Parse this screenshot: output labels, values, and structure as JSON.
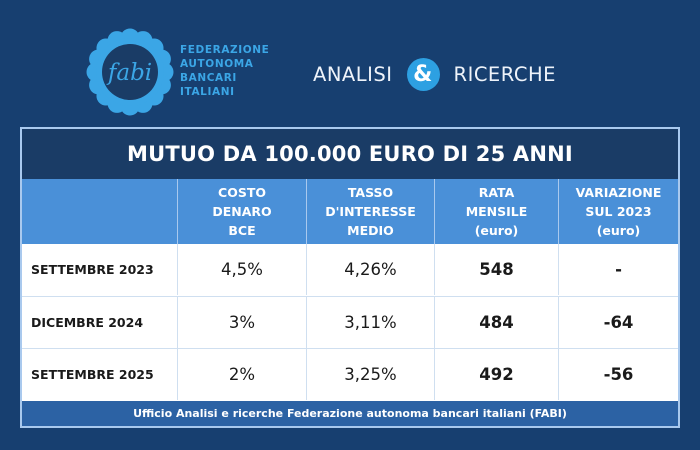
{
  "header": {
    "logo_text": "fabi",
    "org_lines": [
      "FEDERAZIONE",
      "AUTONOMA",
      "BANCARI",
      "ITALIANI"
    ],
    "brand_left": "ANALISI",
    "brand_amp": "&",
    "brand_right": "RICERCHE"
  },
  "colors": {
    "background": "#173f70",
    "title_band": "#1a3c66",
    "header_band": "#4a90d8",
    "accent": "#2da0e2",
    "footer_band": "#2c62a4"
  },
  "table": {
    "title": "MUTUO DA 100.000 EURO DI 25 ANNI",
    "columns": [
      [
        "",
        "",
        ""
      ],
      [
        "COSTO",
        "DENARO",
        "BCE"
      ],
      [
        "TASSO",
        "D'INTERESSE",
        "MEDIO"
      ],
      [
        "RATA",
        "MENSILE",
        "(euro)"
      ],
      [
        "VARIAZIONE",
        "SUL 2023",
        "(euro)"
      ]
    ],
    "rows": [
      [
        "SETTEMBRE 2023",
        "4,5%",
        "4,26%",
        "548",
        "-"
      ],
      [
        "DICEMBRE 2024",
        "3%",
        "3,11%",
        "484",
        "-64"
      ],
      [
        "SETTEMBRE 2025",
        "2%",
        "3,25%",
        "492",
        "-56"
      ]
    ],
    "footer": "Ufficio Analisi e ricerche Federazione autonoma bancari italiani (FABI)"
  }
}
